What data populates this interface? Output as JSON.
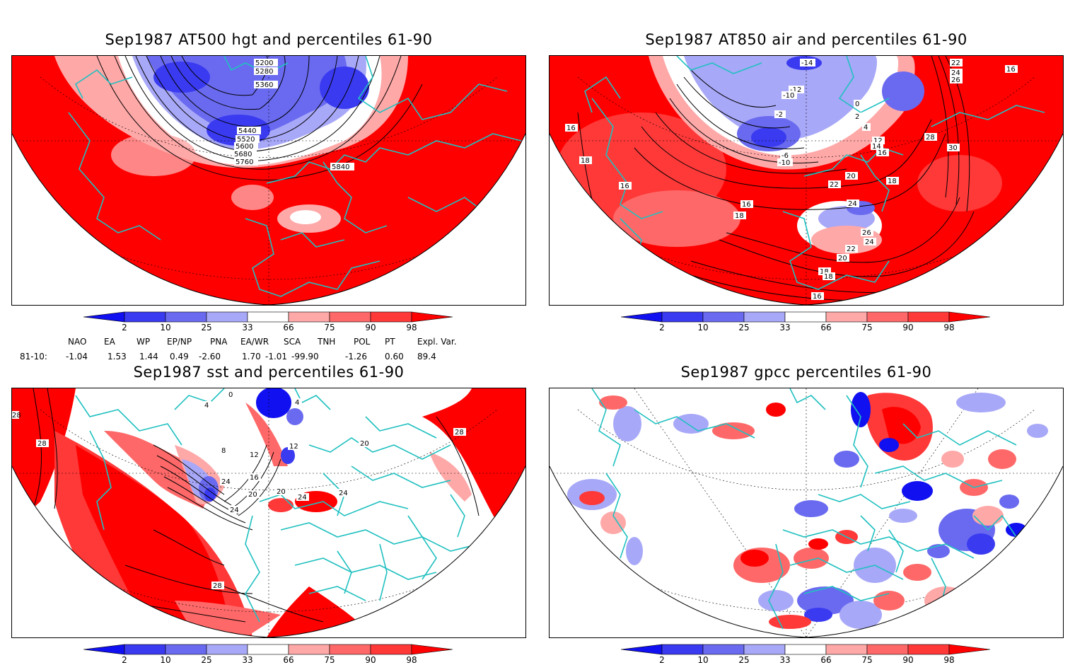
{
  "panels": [
    {
      "id": "p1",
      "title": "Sep1987 AT500 hgt and percentiles 61-90",
      "contour_labels": [
        "5200",
        "5280",
        "5360",
        "5440",
        "5520",
        "5600",
        "5680",
        "5760",
        "5840"
      ]
    },
    {
      "id": "p2",
      "title": "Sep1987 AT850 air and percentiles 61-90",
      "contour_labels": [
        "-14",
        "-12",
        "-10",
        "-2",
        "0",
        "2",
        "4",
        "-6",
        "-10",
        "16",
        "18",
        "16",
        "12",
        "14",
        "16",
        "20",
        "22",
        "18",
        "16",
        "18",
        "24",
        "26",
        "24",
        "22",
        "20",
        "18",
        "16",
        "22",
        "24",
        "26",
        "28",
        "30",
        "16",
        "18"
      ]
    },
    {
      "id": "p3",
      "title": "Sep1987 sst and percentiles 61-90",
      "contour_labels": [
        "28",
        "24",
        "28",
        "8",
        "12",
        "16",
        "20",
        "20",
        "24",
        "24",
        "24",
        "20",
        "28",
        "28",
        "0",
        "4",
        "4",
        "12"
      ]
    },
    {
      "id": "p4",
      "title": "Sep1987 gpcc percentiles 61-90",
      "contour_labels": []
    }
  ],
  "colorbar": {
    "labels": [
      "2",
      "10",
      "25",
      "33",
      "66",
      "75",
      "90",
      "98"
    ],
    "colors": [
      "#1010f0",
      "#3a3af0",
      "#6a6af0",
      "#a8a8f8",
      "#ffffff",
      "#ffa8a8",
      "#ff6868",
      "#ff3838",
      "#ff0000"
    ]
  },
  "indices": {
    "headers": [
      "NAO",
      "EA",
      "WP",
      "EP/NP",
      "PNA",
      "EA/WR",
      "SCA",
      "TNH",
      "POL",
      "PT",
      "Expl. Var."
    ],
    "row_label": "81-10:",
    "values": [
      "-1.04",
      "1.53",
      "1.44",
      "0.49",
      "-2.60",
      "1.70",
      "-1.01",
      "-99.90",
      "-1.26",
      "0.60",
      "89.4"
    ]
  }
}
